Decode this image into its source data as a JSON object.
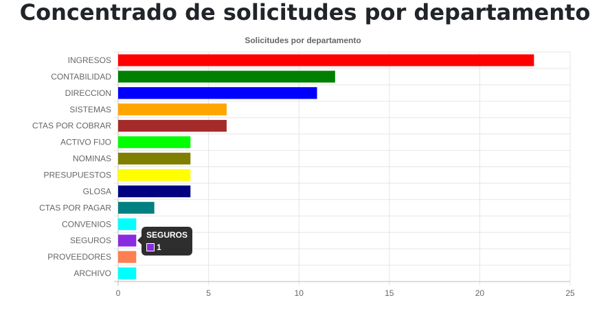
{
  "page": {
    "heading": "Concentrado de solicitudes por departamento"
  },
  "chart_data": {
    "type": "bar",
    "orientation": "horizontal",
    "title": "Solicitudes por departamento",
    "xlabel": "",
    "ylabel": "",
    "categories": [
      "INGRESOS",
      "CONTABILIDAD",
      "DIRECCION",
      "SISTEMAS",
      "CTAS POR COBRAR",
      "ACTIVO FIJO",
      "NOMINAS",
      "PRESUPUESTOS",
      "GLOSA",
      "CTAS POR PAGAR",
      "CONVENIOS",
      "SEGUROS",
      "PROVEEDORES",
      "ARCHIVO"
    ],
    "values": [
      23,
      12,
      11,
      6,
      6,
      4,
      4,
      4,
      4,
      2,
      1,
      1,
      1,
      1
    ],
    "colors": [
      "#ff0000",
      "#008000",
      "#0000ff",
      "#ffa500",
      "#a52a2a",
      "#00ff00",
      "#808000",
      "#ffff00",
      "#000080",
      "#008080",
      "#00ffff",
      "#8a2be2",
      "#ff7f50",
      "#00ffff"
    ],
    "xlim": [
      0,
      25
    ],
    "xticks": [
      0,
      5,
      10,
      15,
      20,
      25
    ],
    "grid": true,
    "legend": "none",
    "tooltip": {
      "title": "SEGUROS",
      "value": "1",
      "color": "#8a2be2"
    }
  }
}
